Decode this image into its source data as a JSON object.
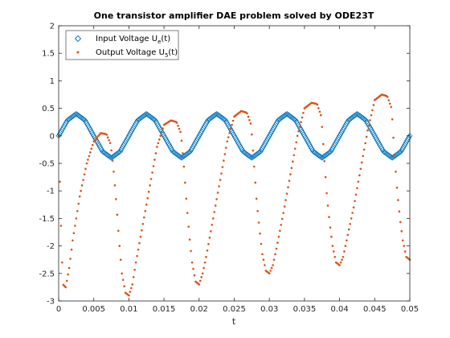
{
  "chart_data": {
    "type": "scatter",
    "title": "One transistor amplifier DAE problem solved by ODE23T",
    "xlabel": "t",
    "ylabel": "",
    "xlim": [
      0,
      0.05
    ],
    "ylim": [
      -3,
      2
    ],
    "x_ticks": [
      0,
      0.005,
      0.01,
      0.015,
      0.02,
      0.025,
      0.03,
      0.035,
      0.04,
      0.045,
      0.05
    ],
    "x_tick_labels": [
      "0",
      "0.005",
      "0.01",
      "0.015",
      "0.02",
      "0.025",
      "0.03",
      "0.035",
      "0.04",
      "0.045",
      "0.05"
    ],
    "y_ticks": [
      -3,
      -2.5,
      -2,
      -1.5,
      -1,
      -0.5,
      0,
      0.5,
      1,
      1.5,
      2
    ],
    "y_tick_labels": [
      "-3",
      "-2.5",
      "-2",
      "-1.5",
      "-1",
      "-0.5",
      "0",
      "0.5",
      "1",
      "1.5",
      "2"
    ],
    "grid": false,
    "legend_position": "top-left",
    "colors": {
      "input": "#0072BD",
      "output": "#D95319",
      "axis": "#262626"
    },
    "legend": [
      {
        "label": "Input Voltage U",
        "sub": "e",
        "suffix": "(t)",
        "marker": "diamond"
      },
      {
        "label": "Output Voltage U",
        "sub": "5",
        "suffix": "(t)",
        "marker": "dot"
      }
    ],
    "series": [
      {
        "marker": "diamond",
        "x": [
          0,
          0.00125,
          0.0025,
          0.00375,
          0.005,
          0.00625,
          0.0075,
          0.00875,
          0.01,
          0.01125,
          0.0125,
          0.01375,
          0.015,
          0.01625,
          0.0175,
          0.01875,
          0.02,
          0.02125,
          0.0225,
          0.02375,
          0.025,
          0.02625,
          0.0275,
          0.02875,
          0.03,
          0.03125,
          0.0325,
          0.03375,
          0.035,
          0.03625,
          0.0375,
          0.03875,
          0.04,
          0.04125,
          0.0425,
          0.04375,
          0.045,
          0.04625,
          0.0475,
          0.04875,
          0.05
        ],
        "y": [
          0,
          0.283,
          0.4,
          0.283,
          0,
          -0.283,
          -0.4,
          -0.283,
          0,
          0.283,
          0.4,
          0.283,
          0,
          -0.283,
          -0.4,
          -0.283,
          0,
          0.283,
          0.4,
          0.283,
          0,
          -0.283,
          -0.4,
          -0.283,
          0,
          0.283,
          0.4,
          0.283,
          0,
          -0.283,
          -0.4,
          -0.283,
          0,
          0.283,
          0.4,
          0.283,
          0,
          -0.283,
          -0.4,
          -0.283,
          0
        ]
      },
      {
        "marker": "dot",
        "x": [
          0,
          0.0003,
          0.0006,
          0.001,
          0.0015,
          0.002,
          0.003,
          0.004,
          0.005,
          0.006,
          0.0068,
          0.0074,
          0.0078,
          0.0082,
          0.0086,
          0.009,
          0.0095,
          0.01,
          0.0105,
          0.011,
          0.012,
          0.013,
          0.014,
          0.015,
          0.016,
          0.0168,
          0.0174,
          0.0178,
          0.0182,
          0.0186,
          0.019,
          0.0195,
          0.02,
          0.0205,
          0.021,
          0.022,
          0.023,
          0.024,
          0.025,
          0.026,
          0.0268,
          0.0274,
          0.0278,
          0.0282,
          0.0286,
          0.029,
          0.0295,
          0.03,
          0.0305,
          0.031,
          0.032,
          0.033,
          0.034,
          0.035,
          0.036,
          0.0368,
          0.0374,
          0.0378,
          0.0382,
          0.0386,
          0.039,
          0.0395,
          0.04,
          0.0405,
          0.041,
          0.042,
          0.043,
          0.044,
          0.045,
          0.046,
          0.0468,
          0.0474,
          0.0478,
          0.0482,
          0.0486,
          0.049,
          0.0495,
          0.05
        ],
        "y": [
          0,
          -1.5,
          -2.7,
          -2.75,
          -2.4,
          -1.9,
          -1.1,
          -0.5,
          -0.1,
          0.05,
          0.03,
          -0.15,
          -0.6,
          -1.2,
          -1.9,
          -2.5,
          -2.85,
          -2.9,
          -2.7,
          -2.3,
          -1.6,
          -0.9,
          -0.2,
          0.2,
          0.28,
          0.25,
          0.05,
          -0.5,
          -1.2,
          -1.8,
          -2.3,
          -2.65,
          -2.7,
          -2.5,
          -2.2,
          -1.5,
          -0.8,
          -0.1,
          0.35,
          0.45,
          0.42,
          0.2,
          -0.5,
          -1.2,
          -1.7,
          -2.15,
          -2.45,
          -2.5,
          -2.35,
          -2.05,
          -1.4,
          -0.7,
          0.0,
          0.5,
          0.6,
          0.58,
          0.35,
          -0.4,
          -1.1,
          -1.6,
          -2.0,
          -2.3,
          -2.35,
          -2.2,
          -1.9,
          -1.3,
          -0.6,
          0.1,
          0.65,
          0.75,
          0.72,
          0.5,
          -0.3,
          -1.0,
          -1.5,
          -1.9,
          -2.2,
          -2.25
        ]
      }
    ]
  }
}
